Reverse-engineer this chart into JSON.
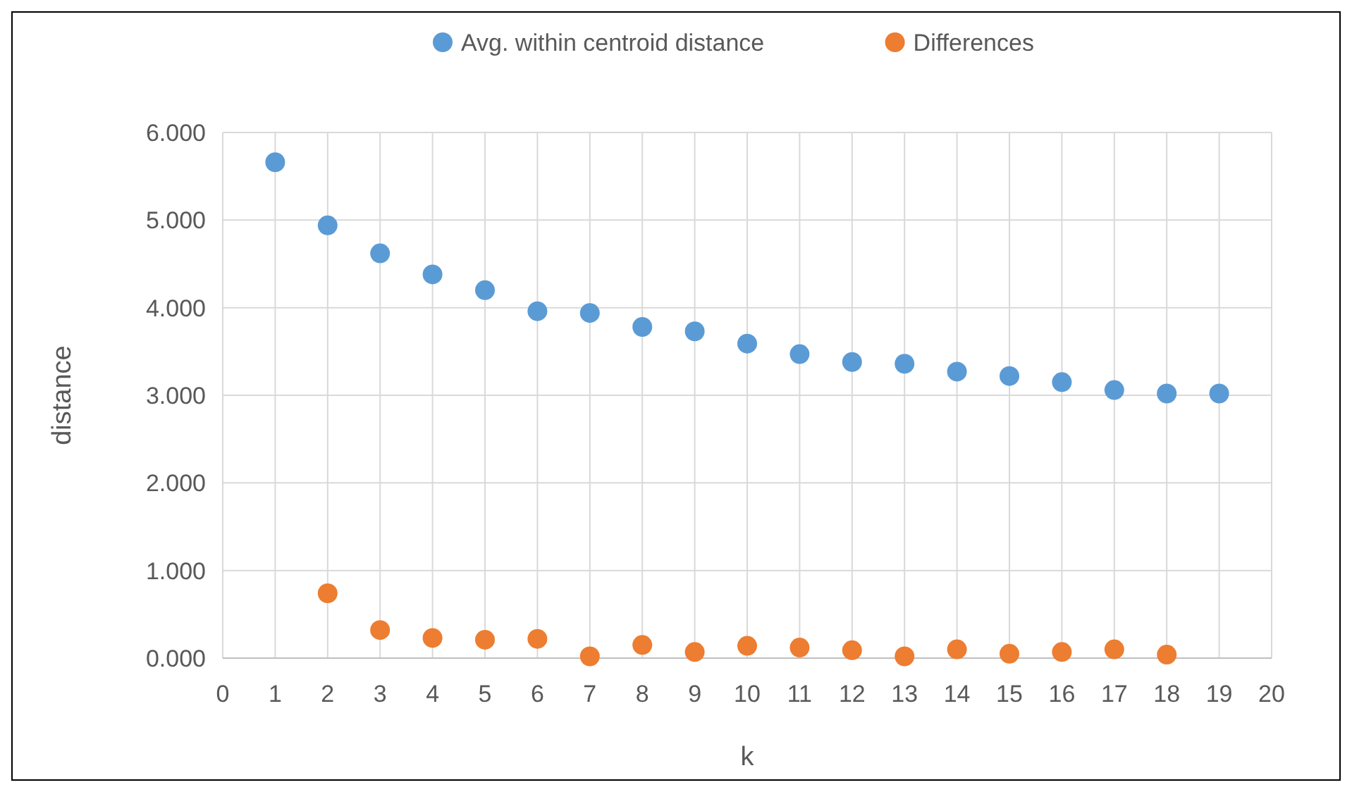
{
  "chart_data": {
    "type": "scatter",
    "xlabel": "k",
    "ylabel": "distance",
    "series": [
      {
        "name": "Avg. within centroid distance",
        "color": "#5b9bd5",
        "x": [
          1,
          2,
          3,
          4,
          5,
          6,
          7,
          8,
          9,
          10,
          11,
          12,
          13,
          14,
          15,
          16,
          17,
          18,
          19
        ],
        "values": [
          5.66,
          4.94,
          4.62,
          4.38,
          4.2,
          3.96,
          3.94,
          3.78,
          3.73,
          3.59,
          3.47,
          3.38,
          3.36,
          3.27,
          3.22,
          3.15,
          3.06,
          3.02,
          3.02
        ]
      },
      {
        "name": "Differences",
        "color": "#ed7d31",
        "x": [
          2,
          3,
          4,
          5,
          6,
          7,
          8,
          9,
          10,
          11,
          12,
          13,
          14,
          15,
          16,
          17,
          18
        ],
        "values": [
          0.74,
          0.32,
          0.23,
          0.21,
          0.22,
          0.02,
          0.15,
          0.07,
          0.14,
          0.12,
          0.09,
          0.02,
          0.1,
          0.05,
          0.07,
          0.1,
          0.04
        ]
      }
    ],
    "xlim": [
      0,
      20
    ],
    "xticks": [
      0,
      1,
      2,
      3,
      4,
      5,
      6,
      7,
      8,
      9,
      10,
      11,
      12,
      13,
      14,
      15,
      16,
      17,
      18,
      19,
      20
    ],
    "ylim": [
      0,
      6
    ],
    "yticks": [
      {
        "value": 0,
        "label": "0.000"
      },
      {
        "value": 1,
        "label": "1.000"
      },
      {
        "value": 2,
        "label": "2.000"
      },
      {
        "value": 3,
        "label": "3.000"
      },
      {
        "value": 4,
        "label": "4.000"
      },
      {
        "value": 5,
        "label": "5.000"
      },
      {
        "value": 6,
        "label": "6.000"
      }
    ],
    "grid": true,
    "legend": "top",
    "marker": "circle"
  }
}
